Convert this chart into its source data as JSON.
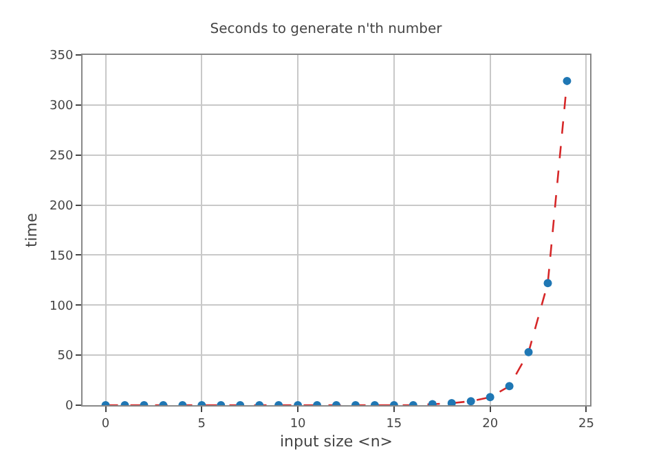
{
  "chart_data": {
    "type": "line",
    "title": "Seconds to generate n'th number",
    "xlabel": "input size <n>",
    "ylabel": "time",
    "x": [
      0,
      1,
      2,
      3,
      4,
      5,
      6,
      7,
      8,
      9,
      10,
      11,
      12,
      13,
      14,
      15,
      16,
      17,
      18,
      19,
      20,
      21,
      22,
      23,
      24
    ],
    "series": [
      {
        "color": "#d62728",
        "line_style": "dashed",
        "marker": "none",
        "values": [
          0,
          0,
          0,
          0,
          0,
          0,
          0,
          0,
          0,
          0,
          0,
          0,
          0,
          0,
          0,
          0,
          0,
          1,
          2,
          4,
          8,
          19,
          53,
          122,
          324
        ]
      },
      {
        "type": "scatter",
        "color": "#1f77b4",
        "marker": "circle",
        "values": [
          0,
          0,
          0,
          0,
          0,
          0,
          0,
          0,
          0,
          0,
          0,
          0,
          0,
          0,
          0,
          0,
          0,
          1,
          2,
          4,
          8,
          19,
          53,
          122,
          324
        ]
      }
    ],
    "xlim": [
      -1.2,
      25.2
    ],
    "xticks": [
      0,
      5,
      10,
      15,
      20,
      25
    ],
    "ylim": [
      0,
      350
    ],
    "yticks": [
      0,
      50,
      100,
      150,
      200,
      250,
      300,
      350
    ],
    "grid": true,
    "legend": false
  }
}
